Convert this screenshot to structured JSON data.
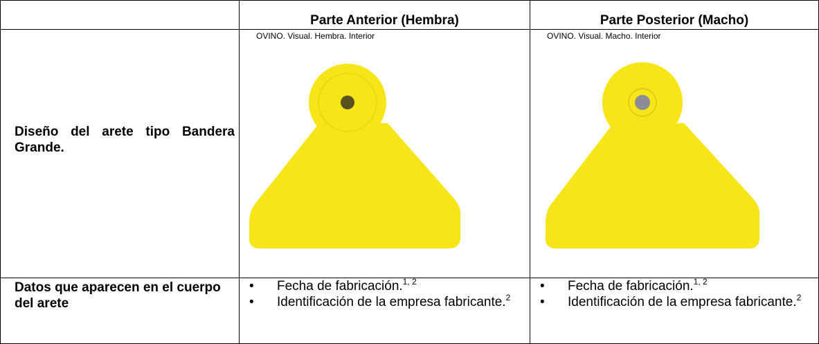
{
  "table": {
    "header": [
      "Parte Anterior (Hembra)",
      "Parte Posterior (Macho)"
    ],
    "design_row": {
      "label": "Diseño del arete tipo Bandera Grande.",
      "captions": [
        "OVINO. Visual. Hembra. Interior",
        "OVINO. Visual. Macho. Interior"
      ]
    },
    "data_row": {
      "label": "Datos que aparecen en el cuerpo del arete",
      "cells": [
        {
          "items": [
            {
              "text": "Fecha de fabricación.",
              "sup": "1, 2"
            },
            {
              "text": "Identificación de la empresa fabricante.",
              "sup": "2"
            }
          ]
        },
        {
          "items": [
            {
              "text": "Fecha de fabricación.",
              "sup": "1, 2"
            },
            {
              "text": "Identificación de la empresa fabricante.",
              "sup": "2"
            }
          ]
        }
      ]
    }
  }
}
